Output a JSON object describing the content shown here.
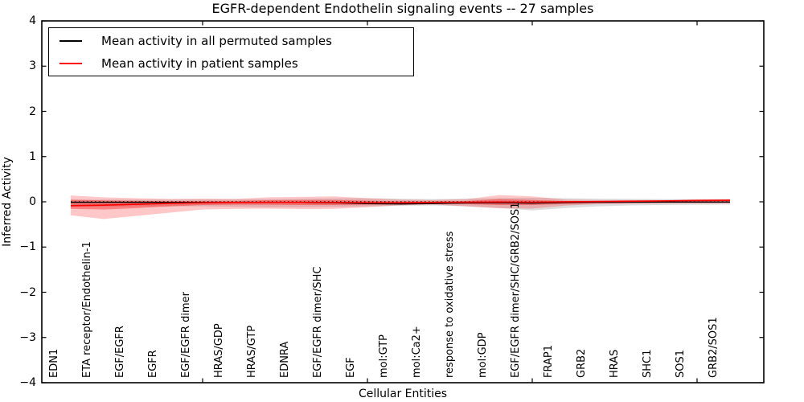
{
  "chart_data": {
    "type": "line",
    "title": "EGFR-dependent Endothelin signaling events -- 27 samples",
    "xlabel": "Cellular Entities",
    "ylabel": "Inferred Activity",
    "ylim": [
      -4,
      4
    ],
    "yticks": [
      {
        "value": 4,
        "label": "4"
      },
      {
        "value": 3,
        "label": "3"
      },
      {
        "value": 2,
        "label": "2"
      },
      {
        "value": 1,
        "label": "1"
      },
      {
        "value": 0,
        "label": "0"
      },
      {
        "value": -1,
        "label": "−1"
      },
      {
        "value": -2,
        "label": "−2"
      },
      {
        "value": -3,
        "label": "−3"
      },
      {
        "value": -4,
        "label": "−4"
      }
    ],
    "xtick_mark_indices": [
      4,
      9,
      14,
      19
    ],
    "categories": [
      "EDN1",
      "ETA receptor/Endothelin-1",
      "EGF/EGFR",
      "EGFR",
      "EGF/EGFR dimer",
      "HRAS/GDP",
      "HRAS/GTP",
      "EDNRA",
      "EGF/EGFR dimer/SHC",
      "EGF",
      "mol:GTP",
      "mol:Ca2+",
      "response to oxidative stress",
      "mol:GDP",
      "EGF/EGFR dimer/SHC/GRB2/SOS1",
      "FRAP1",
      "GRB2",
      "HRAS",
      "SHC1",
      "SOS1",
      "GRB2/SOS1"
    ],
    "legend": [
      {
        "label": "Mean activity in all permuted samples",
        "color": "#000000"
      },
      {
        "label": "Mean activity in patient samples",
        "color": "#ff0000"
      }
    ],
    "zero_line": {
      "value": 0,
      "style": "dotted",
      "color": "#000000"
    },
    "bands": [
      {
        "name": "permuted-range",
        "color": "#000000",
        "opacity": 0.13,
        "top": [
          0.05,
          0.05,
          0.05,
          0.05,
          0.055,
          0.055,
          0.06,
          0.065,
          0.075,
          0.08,
          0.07,
          0.06,
          0.07,
          0.08,
          0.09,
          0.08,
          0.07,
          0.065,
          0.06,
          0.06,
          0.055
        ],
        "bottom": [
          -0.11,
          -0.11,
          -0.1,
          -0.1,
          -0.1,
          -0.11,
          -0.12,
          -0.12,
          -0.11,
          -0.1,
          -0.09,
          -0.08,
          -0.1,
          -0.135,
          -0.19,
          -0.14,
          -0.1,
          -0.08,
          -0.07,
          -0.065,
          -0.06
        ]
      },
      {
        "name": "patient-range",
        "color": "#ff0000",
        "opacity": 0.22,
        "top": [
          0.14,
          0.1,
          0.08,
          0.065,
          0.07,
          0.065,
          0.1,
          0.11,
          0.12,
          0.08,
          0.05,
          0.04,
          0.06,
          0.15,
          0.12,
          0.05,
          0.04,
          0.04,
          0.04,
          0.05,
          0.06
        ],
        "bottom": [
          -0.3,
          -0.38,
          -0.31,
          -0.24,
          -0.17,
          -0.155,
          -0.15,
          -0.16,
          -0.155,
          -0.12,
          -0.075,
          -0.06,
          -0.1,
          -0.145,
          -0.15,
          -0.085,
          -0.05,
          -0.045,
          -0.04,
          -0.04,
          -0.04
        ]
      },
      {
        "name": "patient-std",
        "color": "#ff0000",
        "opacity": 0.35,
        "top": [
          0.045,
          0.03,
          0.02,
          0.015,
          0.02,
          0.02,
          0.035,
          0.04,
          0.04,
          0.025,
          0.012,
          0.008,
          0.018,
          0.06,
          0.04,
          0.018,
          0.015,
          0.02,
          0.03,
          0.04,
          0.05
        ],
        "bottom": [
          -0.155,
          -0.17,
          -0.14,
          -0.1,
          -0.072,
          -0.062,
          -0.065,
          -0.07,
          -0.07,
          -0.062,
          -0.048,
          -0.038,
          -0.05,
          -0.07,
          -0.07,
          -0.048,
          -0.028,
          -0.018,
          -0.008,
          0.0,
          0.01
        ]
      }
    ],
    "series": [
      {
        "name": "Mean activity in all permuted samples",
        "color": "#000000",
        "width": 1.4,
        "values": [
          -0.01,
          -0.01,
          -0.01,
          -0.012,
          -0.015,
          -0.015,
          -0.012,
          -0.015,
          -0.02,
          -0.042,
          -0.048,
          -0.038,
          -0.025,
          -0.02,
          -0.03,
          -0.015,
          -0.01,
          -0.008,
          -0.006,
          -0.005,
          -0.005
        ]
      },
      {
        "name": "Mean activity in patient samples",
        "color": "#ff0000",
        "width": 1.6,
        "values": [
          -0.085,
          -0.075,
          -0.055,
          -0.035,
          -0.022,
          -0.015,
          -0.012,
          -0.012,
          -0.015,
          -0.02,
          -0.02,
          -0.015,
          -0.01,
          -0.005,
          -0.01,
          0.0,
          0.006,
          0.012,
          0.02,
          0.03,
          0.035
        ]
      }
    ]
  }
}
